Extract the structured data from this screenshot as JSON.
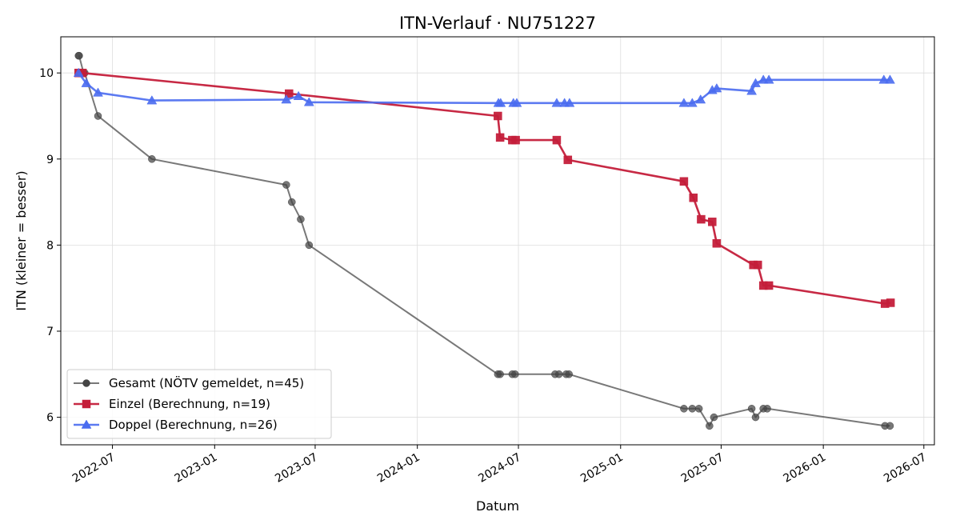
{
  "chart_data": {
    "type": "line",
    "title": "ITN-Verlauf · NU751227",
    "xlabel": "Datum",
    "ylabel": "ITN  (kleiner = besser)",
    "xlim": [
      "2022-03-30",
      "2026-07-20"
    ],
    "ylim": [
      5.68,
      10.42
    ],
    "x_ticks": [
      "2022-07-01",
      "2023-01-01",
      "2023-07-01",
      "2024-01-01",
      "2024-07-01",
      "2025-01-01",
      "2025-07-01",
      "2026-01-01",
      "2026-07-01"
    ],
    "x_tick_labels": [
      "2022-07",
      "2023-01",
      "2023-07",
      "2024-01",
      "2024-07",
      "2025-01",
      "2025-07",
      "2026-01",
      "2026-07"
    ],
    "y_ticks": [
      6,
      7,
      8,
      9,
      10
    ],
    "y_tick_labels": [
      "6",
      "7",
      "8",
      "9",
      "10"
    ],
    "grid": true,
    "legend_position": "lower-left",
    "series": [
      {
        "name": "Gesamt (NÖTV gemeldet, n=45)",
        "color": "#444444",
        "marker": "circle",
        "points": [
          [
            "2022-05-01",
            10.2
          ],
          [
            "2022-05-02",
            10.2
          ],
          [
            "2022-05-10",
            10.0
          ],
          [
            "2022-05-12",
            10.0
          ],
          [
            "2022-06-05",
            9.5
          ],
          [
            "2022-09-10",
            9.0
          ],
          [
            "2023-05-10",
            8.7
          ],
          [
            "2023-05-20",
            8.5
          ],
          [
            "2023-06-05",
            8.3
          ],
          [
            "2023-06-20",
            8.0
          ],
          [
            "2024-05-25",
            6.5
          ],
          [
            "2024-05-29",
            6.5
          ],
          [
            "2024-06-20",
            6.5
          ],
          [
            "2024-06-25",
            6.5
          ],
          [
            "2024-09-05",
            6.5
          ],
          [
            "2024-09-12",
            6.5
          ],
          [
            "2024-09-25",
            6.5
          ],
          [
            "2024-09-30",
            6.5
          ],
          [
            "2025-04-25",
            6.1
          ],
          [
            "2025-05-10",
            6.1
          ],
          [
            "2025-05-22",
            6.1
          ],
          [
            "2025-06-10",
            5.9
          ],
          [
            "2025-06-18",
            6.0
          ],
          [
            "2025-08-25",
            6.1
          ],
          [
            "2025-09-01",
            6.0
          ],
          [
            "2025-09-15",
            6.1
          ],
          [
            "2025-09-22",
            6.1
          ],
          [
            "2026-04-22",
            5.9
          ],
          [
            "2026-05-01",
            5.9
          ]
        ]
      },
      {
        "name": "Einzel (Berechnung, n=19)",
        "color": "#c41e3a",
        "marker": "square",
        "points": [
          [
            "2022-05-01",
            10.0
          ],
          [
            "2022-05-08",
            10.0
          ],
          [
            "2023-05-15",
            9.76
          ],
          [
            "2024-05-25",
            9.5
          ],
          [
            "2024-05-29",
            9.25
          ],
          [
            "2024-06-20",
            9.22
          ],
          [
            "2024-06-26",
            9.22
          ],
          [
            "2024-09-08",
            9.22
          ],
          [
            "2024-09-28",
            8.99
          ],
          [
            "2025-04-25",
            8.74
          ],
          [
            "2025-05-12",
            8.55
          ],
          [
            "2025-05-26",
            8.3
          ],
          [
            "2025-06-15",
            8.27
          ],
          [
            "2025-06-23",
            8.02
          ],
          [
            "2025-08-28",
            7.77
          ],
          [
            "2025-09-05",
            7.77
          ],
          [
            "2025-09-15",
            7.53
          ],
          [
            "2025-09-25",
            7.53
          ],
          [
            "2026-04-22",
            7.32
          ],
          [
            "2026-05-02",
            7.33
          ]
        ]
      },
      {
        "name": "Doppel (Berechnung, n=26)",
        "color": "#4a6cf0",
        "marker": "triangle",
        "points": [
          [
            "2022-05-01",
            10.0
          ],
          [
            "2022-05-15",
            9.88
          ],
          [
            "2022-06-05",
            9.77
          ],
          [
            "2022-09-10",
            9.68
          ],
          [
            "2023-05-10",
            9.69
          ],
          [
            "2023-06-01",
            9.73
          ],
          [
            "2023-06-20",
            9.66
          ],
          [
            "2024-05-26",
            9.65
          ],
          [
            "2024-05-30",
            9.65
          ],
          [
            "2024-06-22",
            9.65
          ],
          [
            "2024-06-28",
            9.65
          ],
          [
            "2024-09-08",
            9.65
          ],
          [
            "2024-09-22",
            9.65
          ],
          [
            "2024-10-01",
            9.65
          ],
          [
            "2025-04-25",
            9.65
          ],
          [
            "2025-05-10",
            9.65
          ],
          [
            "2025-05-25",
            9.69
          ],
          [
            "2025-06-15",
            9.8
          ],
          [
            "2025-06-23",
            9.82
          ],
          [
            "2025-08-25",
            9.79
          ],
          [
            "2025-09-01",
            9.88
          ],
          [
            "2025-09-15",
            9.92
          ],
          [
            "2025-09-25",
            9.92
          ],
          [
            "2026-04-20",
            9.92
          ],
          [
            "2026-05-01",
            9.92
          ]
        ]
      }
    ]
  }
}
